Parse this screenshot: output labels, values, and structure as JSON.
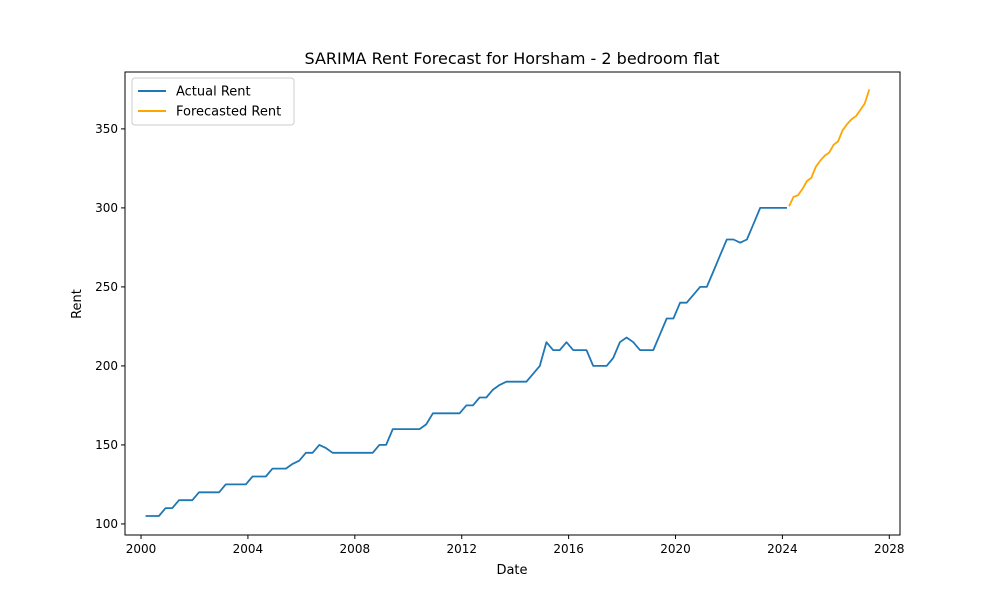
{
  "chart_data": {
    "type": "line",
    "title": "SARIMA Rent Forecast for Horsham - 2 bedroom flat",
    "xlabel": "Date",
    "ylabel": "Rent",
    "xlim": [
      1999.4,
      2028.4
    ],
    "ylim": [
      93,
      386
    ],
    "xticks": [
      2000,
      2004,
      2008,
      2012,
      2016,
      2020,
      2024,
      2028
    ],
    "yticks": [
      100,
      150,
      200,
      250,
      300,
      350
    ],
    "grid": false,
    "legend_position": "top-left",
    "series": [
      {
        "name": "Actual Rent",
        "color": "#1f77b4",
        "points": [
          [
            2000.17,
            105
          ],
          [
            2000.42,
            105
          ],
          [
            2000.67,
            105
          ],
          [
            2000.92,
            110
          ],
          [
            2001.17,
            110
          ],
          [
            2001.42,
            115
          ],
          [
            2001.67,
            115
          ],
          [
            2001.92,
            115
          ],
          [
            2002.17,
            120
          ],
          [
            2002.42,
            120
          ],
          [
            2002.67,
            120
          ],
          [
            2002.92,
            120
          ],
          [
            2003.17,
            125
          ],
          [
            2003.42,
            125
          ],
          [
            2003.67,
            125
          ],
          [
            2003.92,
            125
          ],
          [
            2004.17,
            130
          ],
          [
            2004.42,
            130
          ],
          [
            2004.67,
            130
          ],
          [
            2004.92,
            135
          ],
          [
            2005.17,
            135
          ],
          [
            2005.42,
            135
          ],
          [
            2005.67,
            138
          ],
          [
            2005.92,
            140
          ],
          [
            2006.17,
            145
          ],
          [
            2006.42,
            145
          ],
          [
            2006.67,
            150
          ],
          [
            2006.92,
            148
          ],
          [
            2007.17,
            145
          ],
          [
            2007.42,
            145
          ],
          [
            2007.67,
            145
          ],
          [
            2007.92,
            145
          ],
          [
            2008.17,
            145
          ],
          [
            2008.42,
            145
          ],
          [
            2008.67,
            145
          ],
          [
            2008.92,
            150
          ],
          [
            2009.17,
            150
          ],
          [
            2009.42,
            160
          ],
          [
            2009.67,
            160
          ],
          [
            2009.92,
            160
          ],
          [
            2010.17,
            160
          ],
          [
            2010.42,
            160
          ],
          [
            2010.67,
            163
          ],
          [
            2010.92,
            170
          ],
          [
            2011.17,
            170
          ],
          [
            2011.42,
            170
          ],
          [
            2011.67,
            170
          ],
          [
            2011.92,
            170
          ],
          [
            2012.17,
            175
          ],
          [
            2012.42,
            175
          ],
          [
            2012.67,
            180
          ],
          [
            2012.92,
            180
          ],
          [
            2013.17,
            185
          ],
          [
            2013.42,
            188
          ],
          [
            2013.67,
            190
          ],
          [
            2013.92,
            190
          ],
          [
            2014.17,
            190
          ],
          [
            2014.42,
            190
          ],
          [
            2014.67,
            195
          ],
          [
            2014.92,
            200
          ],
          [
            2015.17,
            215
          ],
          [
            2015.42,
            210
          ],
          [
            2015.67,
            210
          ],
          [
            2015.92,
            215
          ],
          [
            2016.17,
            210
          ],
          [
            2016.42,
            210
          ],
          [
            2016.67,
            210
          ],
          [
            2016.92,
            200
          ],
          [
            2017.17,
            200
          ],
          [
            2017.42,
            200
          ],
          [
            2017.67,
            205
          ],
          [
            2017.92,
            215
          ],
          [
            2018.17,
            218
          ],
          [
            2018.42,
            215
          ],
          [
            2018.67,
            210
          ],
          [
            2018.92,
            210
          ],
          [
            2019.17,
            210
          ],
          [
            2019.42,
            220
          ],
          [
            2019.67,
            230
          ],
          [
            2019.92,
            230
          ],
          [
            2020.17,
            240
          ],
          [
            2020.42,
            240
          ],
          [
            2020.67,
            245
          ],
          [
            2020.92,
            250
          ],
          [
            2021.17,
            250
          ],
          [
            2021.42,
            260
          ],
          [
            2021.67,
            270
          ],
          [
            2021.92,
            280
          ],
          [
            2022.17,
            280
          ],
          [
            2022.42,
            278
          ],
          [
            2022.67,
            280
          ],
          [
            2022.92,
            290
          ],
          [
            2023.17,
            300
          ],
          [
            2023.42,
            300
          ],
          [
            2023.67,
            300
          ],
          [
            2023.92,
            300
          ],
          [
            2024.17,
            300
          ]
        ]
      },
      {
        "name": "Forecasted Rent",
        "color": "#ffa500",
        "points": [
          [
            2024.25,
            301
          ],
          [
            2024.42,
            307
          ],
          [
            2024.58,
            308
          ],
          [
            2024.75,
            312
          ],
          [
            2024.92,
            317
          ],
          [
            2025.08,
            319
          ],
          [
            2025.25,
            326
          ],
          [
            2025.42,
            330
          ],
          [
            2025.58,
            333
          ],
          [
            2025.75,
            335
          ],
          [
            2025.92,
            340
          ],
          [
            2026.08,
            342
          ],
          [
            2026.25,
            349
          ],
          [
            2026.42,
            353
          ],
          [
            2026.58,
            356
          ],
          [
            2026.75,
            358
          ],
          [
            2026.92,
            362
          ],
          [
            2027.08,
            366
          ],
          [
            2027.25,
            375
          ]
        ]
      }
    ]
  }
}
